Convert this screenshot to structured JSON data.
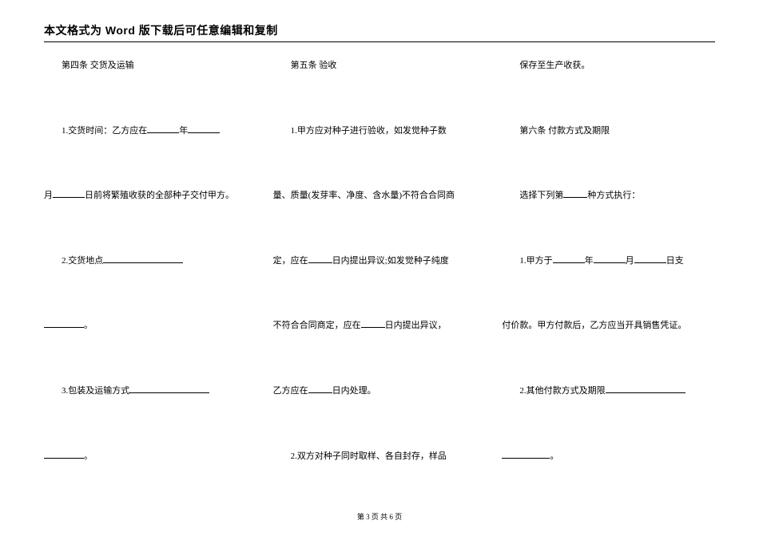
{
  "header": {
    "title": "本文格式为 Word 版下载后可任意编辑和复制"
  },
  "col1": {
    "p1": "第四条 交货及运输",
    "p2a": "1.交货时间：乙方应在",
    "p2b": "年",
    "p3a": "月",
    "p3b": "日前将繁殖收获的全部种子交付甲方。",
    "p4a": "2.交货地点",
    "p5a": "。",
    "p6a": "3.包装及运输方式",
    "p7a": "。"
  },
  "col2": {
    "p1": "第五条 验收",
    "p2": "1.甲方应对种子进行验收，如发觉种子数",
    "p3": "量、质量(发芽率、净度、含水量)不符合合同商",
    "p4a": "定，应在",
    "p4b": "日内提出异议;如发觉种子纯度",
    "p5a": "不符合合同商定，应在",
    "p5b": "日内提出异议，",
    "p6a": "乙方应在",
    "p6b": "日内处理。",
    "p7": "2.双方对种子同时取样、各自封存，样品"
  },
  "col3": {
    "p1": "保存至生产收获。",
    "p2": "第六条 付款方式及期限",
    "p3a": "选择下列第",
    "p3b": "种方式执行：",
    "p4a": "1.甲方于",
    "p4b": "年",
    "p4c": "月",
    "p4d": "日支",
    "p5": "付价款。甲方付款后，乙方应当开具销售凭证。",
    "p6a": "2.其他付款方式及期限",
    "p7a": "。"
  },
  "footer": {
    "text": "第 3 页 共 6 页"
  }
}
